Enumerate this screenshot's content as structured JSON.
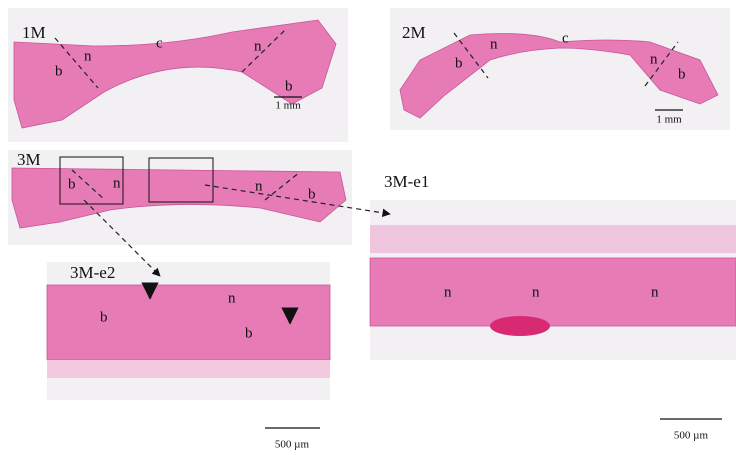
{
  "panels": [
    {
      "label": "1M",
      "annotations": [
        "b",
        "n",
        "c",
        "n",
        "b"
      ],
      "scale_bar": "1 mm"
    },
    {
      "label": "2M",
      "annotations": [
        "b",
        "n",
        "c",
        "n",
        "b"
      ],
      "scale_bar": "1 mm"
    },
    {
      "label": "3M",
      "annotations": [
        "b",
        "n",
        "n",
        "b"
      ]
    },
    {
      "label": "3M-e1",
      "annotations": [
        "n",
        "n",
        "n"
      ],
      "scale_bar": "500 µm"
    },
    {
      "label": "3M-e2",
      "annotations": [
        "b",
        "n",
        "b"
      ],
      "scale_bar": "500 µm"
    }
  ]
}
